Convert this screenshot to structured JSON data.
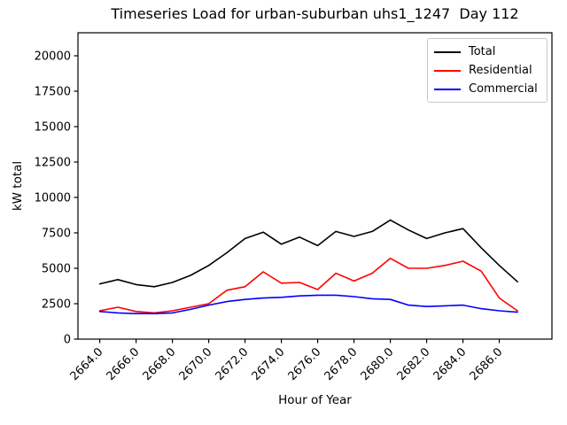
{
  "chart_data": {
    "type": "line",
    "title": "Timeseries Load for urban-suburban uhs1_1247  Day 112",
    "xlabel": "Hour of Year",
    "ylabel": "kW total",
    "background": "#ffffff",
    "grid": false,
    "legend_position": "upper right",
    "xlim": [
      2662.8,
      2688.9
    ],
    "ylim": [
      0,
      21625
    ],
    "xticks": [
      2664,
      2666,
      2668,
      2670,
      2672,
      2674,
      2676,
      2678,
      2680,
      2682,
      2684,
      2686
    ],
    "xtick_labels": [
      "2664.0",
      "2666.0",
      "2668.0",
      "2670.0",
      "2672.0",
      "2674.0",
      "2676.0",
      "2678.0",
      "2680.0",
      "2682.0",
      "2684.0",
      "2686.0"
    ],
    "xtick_rotation": 45,
    "yticks": [
      0,
      2500,
      5000,
      7500,
      10000,
      12500,
      15000,
      17500,
      20000
    ],
    "ytick_labels": [
      "0",
      "2500",
      "5000",
      "7500",
      "10000",
      "12500",
      "15000",
      "17500",
      "20000"
    ],
    "x": [
      2664,
      2665,
      2666,
      2667,
      2668,
      2669,
      2670,
      2671,
      2672,
      2673,
      2674,
      2675,
      2676,
      2677,
      2678,
      2679,
      2680,
      2681,
      2682,
      2683,
      2684,
      2685,
      2686,
      2687
    ],
    "series": [
      {
        "name": "Total",
        "color": "#000000",
        "values": [
          3900,
          4200,
          3850,
          3700,
          4000,
          4500,
          5200,
          6100,
          7100,
          7550,
          6700,
          7200,
          6600,
          7600,
          7250,
          7600,
          8400,
          7700,
          7100,
          7500,
          7800,
          6450,
          5200,
          4050
        ]
      },
      {
        "name": "Residential",
        "color": "#ff0000",
        "values": [
          2000,
          2250,
          1950,
          1850,
          2000,
          2250,
          2500,
          3450,
          3700,
          4750,
          3950,
          4000,
          3500,
          4650,
          4100,
          4650,
          5700,
          5000,
          5000,
          5200,
          5500,
          4800,
          2900,
          2000
        ]
      },
      {
        "name": "Commercial",
        "color": "#0000ff",
        "values": [
          1950,
          1850,
          1800,
          1800,
          1850,
          2100,
          2400,
          2650,
          2800,
          2900,
          2950,
          3050,
          3100,
          3100,
          3000,
          2850,
          2800,
          2400,
          2300,
          2350,
          2400,
          2150,
          2000,
          1900
        ]
      }
    ]
  }
}
